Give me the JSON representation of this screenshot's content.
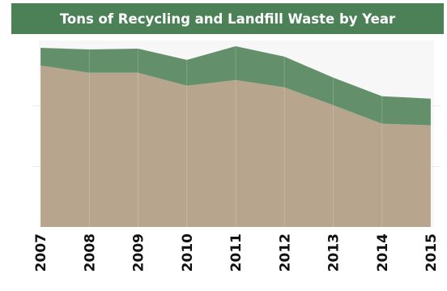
{
  "colors": {
    "title_bar": "#4c8158",
    "recycling": "#63906a",
    "landfill": "#b7a68d",
    "plot_background": "#f7f7f7",
    "gridline": "#eaeaea"
  },
  "chart_data": {
    "type": "area",
    "stacked": true,
    "title": "Tons of Recycling and Landfill Waste by Year",
    "xlabel": "",
    "ylabel": "",
    "x": [
      "2007",
      "2008",
      "2009",
      "2010",
      "2011",
      "2012",
      "2013",
      "2014",
      "2015"
    ],
    "ylim": [
      0,
      225
    ],
    "grid": true,
    "legend": "none",
    "series": [
      {
        "name": "",
        "color": "#b7a68d",
        "values": [
          200,
          191,
          191,
          175,
          182,
          173,
          151,
          128,
          126
        ]
      },
      {
        "name": "",
        "color": "#63906a",
        "values": [
          22,
          29,
          30,
          32,
          42,
          38,
          34,
          34,
          33
        ]
      }
    ]
  }
}
